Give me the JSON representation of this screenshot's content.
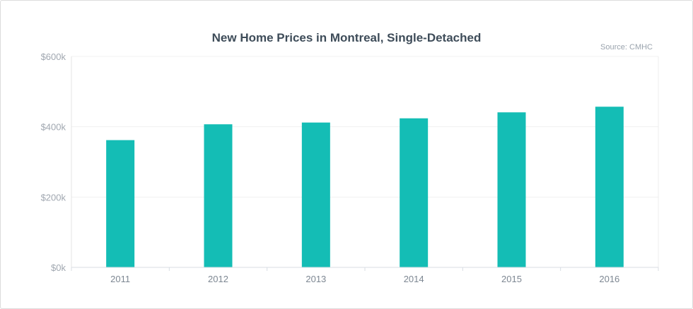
{
  "chart_data": {
    "type": "bar",
    "title": "New Home Prices in Montreal, Single-Detached",
    "source": "Source: CMHC",
    "categories": [
      "2011",
      "2012",
      "2013",
      "2014",
      "2015",
      "2016"
    ],
    "values": [
      362000,
      407000,
      412000,
      424000,
      441000,
      457000
    ],
    "ylim": [
      0,
      600000
    ],
    "yticks": [
      0,
      200000,
      400000,
      600000
    ],
    "ytick_labels": [
      "$0k",
      "$200k",
      "$400k",
      "$600k"
    ],
    "grid": true,
    "bar_color": "#14bdb5",
    "legend": "none"
  }
}
